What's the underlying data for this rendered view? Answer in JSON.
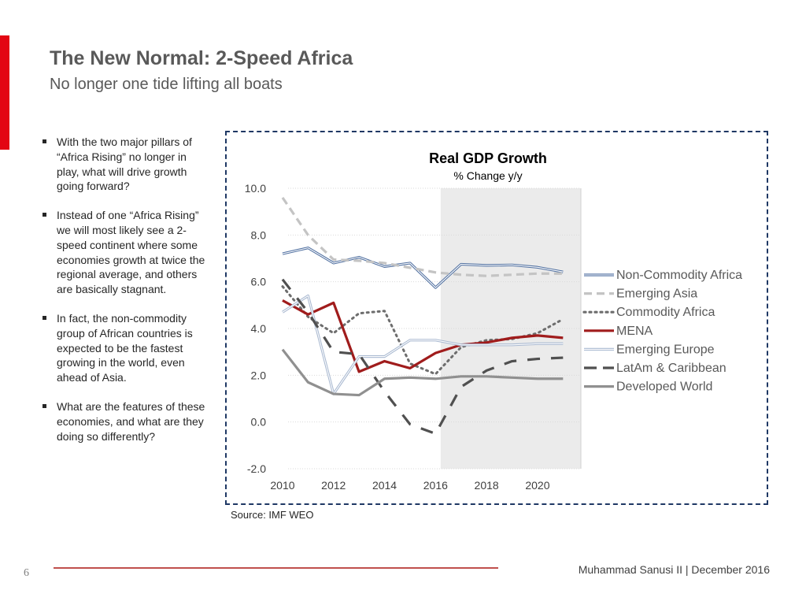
{
  "slide": {
    "title": "The New Normal: 2-Speed Africa",
    "subtitle": "No longer one tide lifting all boats",
    "page_number": "6",
    "footer": "Muhammad Sanusi II   |   December 2016",
    "source": "Source: IMF WEO"
  },
  "bullets": [
    "With the two major pillars of “Africa Rising” no longer in play, what will drive growth going forward?",
    "Instead of one “Africa Rising” we will most likely see a 2-speed continent where some economies growth at twice the regional average, and others are basically stagnant.",
    "In fact, the non-commodity group of African countries is expected to be the fastest growing in the world, even ahead of Asia.",
    "What are the features of these economies, and what are they doing so differently?"
  ],
  "colors": {
    "accent_red": "#e30613",
    "footer_line": "#c0504d",
    "frame": "#1f3864",
    "forecast_shade": "#ebebeb"
  },
  "chart_data": {
    "type": "line",
    "title": "Real GDP Growth",
    "subtitle": "% Change y/y",
    "x": [
      2010,
      2011,
      2012,
      2013,
      2014,
      2015,
      2016,
      2017,
      2018,
      2019,
      2020,
      2021
    ],
    "xticks": [
      2010,
      2012,
      2014,
      2016,
      2018,
      2020
    ],
    "xtick_labels": [
      "2010",
      "2012",
      "2014",
      "2016",
      "2018",
      "2020"
    ],
    "yticks": [
      -2,
      0,
      2,
      4,
      6,
      8,
      10
    ],
    "ytick_labels": [
      "-2.0",
      "0.0",
      "2.0",
      "4.0",
      "6.0",
      "8.0",
      "10.0"
    ],
    "ylim": [
      -2,
      10
    ],
    "xlim": [
      2009.6,
      2021.7
    ],
    "forecast_start": 2016.2,
    "grid": true,
    "legend_position": "right",
    "series": [
      {
        "name": "Non-Commodity Africa",
        "color": "#4f6fa0",
        "style": "double",
        "values": [
          7.2,
          7.45,
          6.8,
          7.05,
          6.65,
          6.8,
          5.75,
          6.75,
          6.7,
          6.72,
          6.62,
          6.42
        ]
      },
      {
        "name": "Emerging Asia",
        "color": "#c4c4c4",
        "style": "dashed",
        "values": [
          9.6,
          8.0,
          6.95,
          6.9,
          6.8,
          6.6,
          6.4,
          6.3,
          6.25,
          6.3,
          6.35,
          6.35
        ]
      },
      {
        "name": "Commodity Africa",
        "color": "#6d6d6d",
        "style": "dotted",
        "values": [
          5.8,
          4.5,
          3.8,
          4.65,
          4.75,
          2.5,
          2.05,
          3.2,
          3.5,
          3.55,
          3.8,
          4.4
        ]
      },
      {
        "name": "MENA",
        "color": "#a01c1c",
        "style": "solid",
        "values": [
          5.2,
          4.6,
          5.1,
          2.15,
          2.6,
          2.3,
          2.95,
          3.3,
          3.4,
          3.6,
          3.7,
          3.6
        ]
      },
      {
        "name": "Emerging Europe",
        "color": "#a8b8d0",
        "style": "double",
        "values": [
          4.7,
          5.4,
          1.2,
          2.8,
          2.8,
          3.5,
          3.5,
          3.3,
          3.3,
          3.3,
          3.35,
          3.35
        ]
      },
      {
        "name": "LatAm & Caribbean",
        "color": "#505050",
        "style": "longdash",
        "values": [
          6.1,
          4.7,
          3.0,
          2.9,
          1.3,
          -0.1,
          -0.5,
          1.5,
          2.2,
          2.6,
          2.7,
          2.75
        ]
      },
      {
        "name": "Developed World",
        "color": "#909090",
        "style": "solid",
        "values": [
          3.1,
          1.7,
          1.2,
          1.15,
          1.85,
          1.9,
          1.85,
          1.95,
          1.95,
          1.9,
          1.85,
          1.85
        ]
      }
    ]
  }
}
